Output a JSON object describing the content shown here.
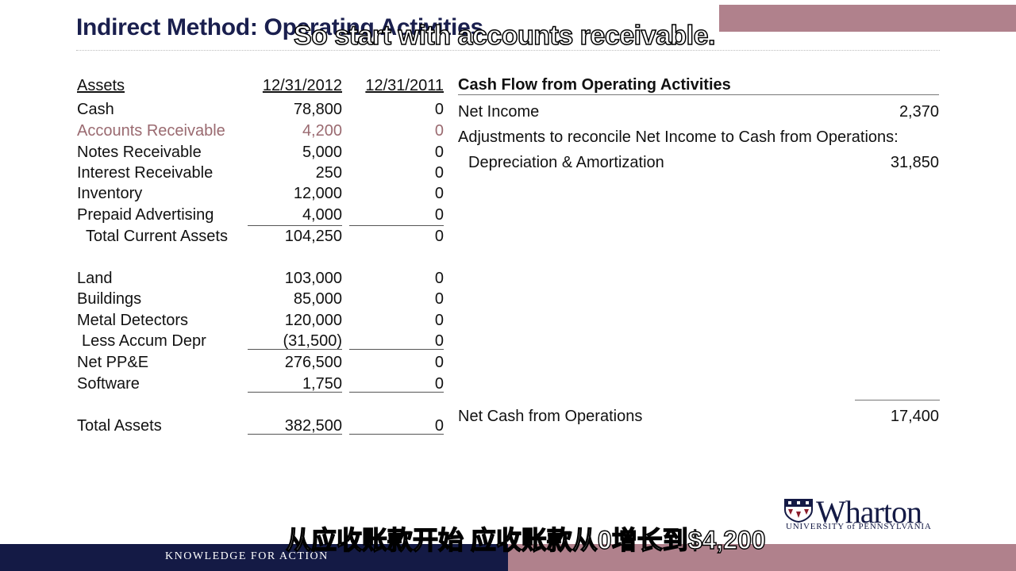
{
  "slide": {
    "title": "Indirect Method: Operating Activities",
    "caption_en": "So start with accounts receivable.",
    "caption_zh": "从应收账款开始 应收账款从0增长到$4,200"
  },
  "balance_sheet": {
    "header": {
      "label": "Assets",
      "col1": "12/31/2012",
      "col2": "12/31/2011"
    },
    "rows": [
      {
        "label": "Cash",
        "v2012": "78,800",
        "v2011": "0"
      },
      {
        "label": "Accounts Receivable",
        "v2012": "4,200",
        "v2011": "0"
      },
      {
        "label": "Notes Receivable",
        "v2012": "5,000",
        "v2011": "0"
      },
      {
        "label": "Interest Receivable",
        "v2012": "250",
        "v2011": "0"
      },
      {
        "label": "Inventory",
        "v2012": "12,000",
        "v2011": "0"
      },
      {
        "label": "Prepaid Advertising",
        "v2012": "4,000",
        "v2011": "0"
      },
      {
        "label": "Total Current Assets",
        "v2012": "104,250",
        "v2011": "0"
      },
      {
        "label": "Land",
        "v2012": "103,000",
        "v2011": "0"
      },
      {
        "label": "Buildings",
        "v2012": "85,000",
        "v2011": "0"
      },
      {
        "label": "Metal Detectors",
        "v2012": "120,000",
        "v2011": "0"
      },
      {
        "label": "Less Accum Depr",
        "v2012": "(31,500)",
        "v2011": "0"
      },
      {
        "label": "Net PP&E",
        "v2012": "276,500",
        "v2011": "0"
      },
      {
        "label": "Software",
        "v2012": "1,750",
        "v2011": "0"
      },
      {
        "label": "Total Assets",
        "v2012": "382,500",
        "v2011": "0"
      }
    ]
  },
  "cash_flow": {
    "header": "Cash Flow from Operating Activities",
    "net_income_label": "Net Income",
    "net_income_value": "2,370",
    "adjustments_label": "Adjustments to reconcile Net Income to Cash from Operations:",
    "depreciation_label": "Depreciation & Amortization",
    "depreciation_value": "31,850",
    "net_cash_label": "Net Cash from Operations",
    "net_cash_value": "17,400"
  },
  "footer": {
    "tagline": "KNOWLEDGE FOR ACTION",
    "logo_name": "Wharton",
    "logo_sub": "UNIVERSITY of PENNSYLVANIA"
  },
  "colors": {
    "title": "#1a1f4e",
    "highlight": "#9a6a70",
    "footer_navy": "#141a45",
    "footer_mauve": "#b0818c"
  }
}
